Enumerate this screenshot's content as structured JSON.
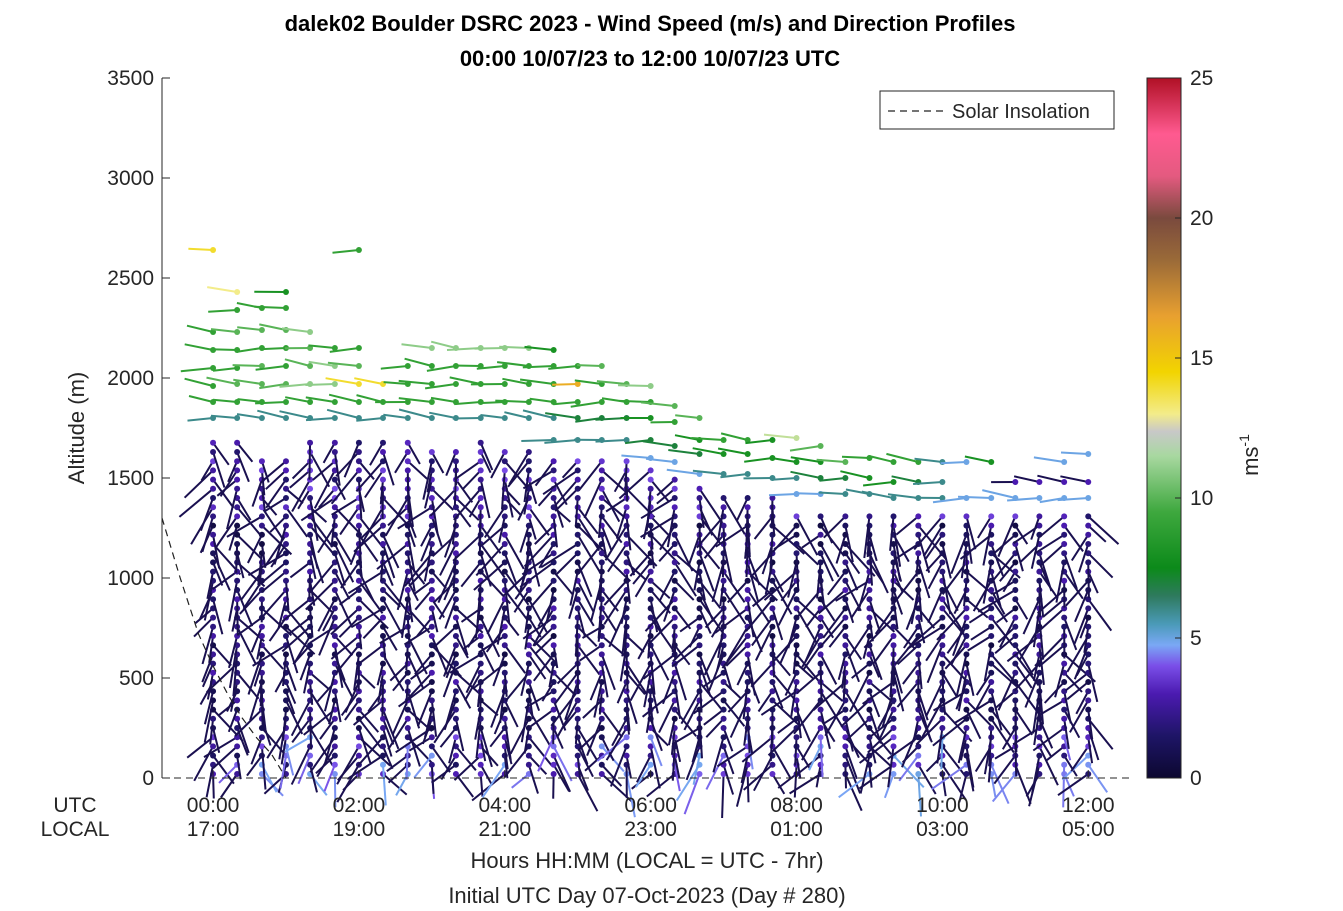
{
  "chart_data": {
    "type": "wind-barb-profile",
    "title_line1": "dalek02 Boulder DSRC 2023 - Wind Speed (m/s) and Direction Profiles",
    "title_line2": "00:00 10/07/23 to 12:00 10/07/23  UTC",
    "ylabel": "Altitude (m)",
    "ylim": [
      0,
      3500
    ],
    "yticks": [
      "0",
      "500",
      "1000",
      "1500",
      "2000",
      "2500",
      "3000",
      "3500"
    ],
    "xlim_hours": [
      -0.7,
      12.6
    ],
    "x_row_labels": [
      "UTC",
      "LOCAL"
    ],
    "x_ticks_utc": [
      "00:00",
      "02:00",
      "04:00",
      "06:00",
      "08:00",
      "10:00",
      "12:00"
    ],
    "x_ticks_local": [
      "17:00",
      "19:00",
      "21:00",
      "23:00",
      "01:00",
      "03:00",
      "05:00"
    ],
    "x_tick_hours": [
      0,
      2,
      4,
      6,
      8,
      10,
      12
    ],
    "xlabel": "Hours HH:MM  (LOCAL = UTC - 7hr)",
    "xlabel2": "Initial UTC Day 07-Oct-2023 (Day # 280)",
    "legend": {
      "entry": "Solar Insolation",
      "placement": "top-right"
    },
    "colorbar": {
      "label": "ms",
      "label_superscript": "-1",
      "range": [
        0,
        25
      ],
      "ticks": [
        "0",
        "5",
        "10",
        "15",
        "20",
        "25"
      ]
    },
    "solar_insolation": {
      "hours": [
        -0.7,
        -0.45,
        -0.2,
        0.0,
        0.2,
        0.4,
        0.6,
        0.8,
        1.0
      ],
      "altitude": [
        1300,
        1000,
        720,
        560,
        420,
        300,
        200,
        120,
        0
      ]
    },
    "profiles": [
      {
        "hour": 0.0,
        "top": 1700,
        "upper": [
          [
            1800,
            6
          ],
          [
            1880,
            9
          ],
          [
            1960,
            9
          ],
          [
            2050,
            9
          ],
          [
            2140,
            9
          ],
          [
            2230,
            9
          ],
          [
            2640,
            14
          ]
        ]
      },
      {
        "hour": 0.33,
        "top": 1700,
        "upper": [
          [
            1800,
            6
          ],
          [
            1880,
            9
          ],
          [
            1970,
            10
          ],
          [
            2050,
            9
          ],
          [
            2140,
            9
          ],
          [
            2230,
            10
          ],
          [
            2340,
            9
          ],
          [
            2430,
            13
          ]
        ]
      },
      {
        "hour": 0.67,
        "top": 1620,
        "upper": [
          [
            1800,
            6
          ],
          [
            1880,
            9
          ],
          [
            1970,
            10
          ],
          [
            2060,
            10
          ],
          [
            2150,
            9
          ],
          [
            2240,
            10
          ],
          [
            2350,
            9
          ]
        ]
      },
      {
        "hour": 1.0,
        "top": 1600,
        "upper": [
          [
            1800,
            6
          ],
          [
            1880,
            9
          ],
          [
            1970,
            10
          ],
          [
            2060,
            9
          ],
          [
            2150,
            9
          ],
          [
            2240,
            10
          ],
          [
            2350,
            9
          ],
          [
            2430,
            8
          ]
        ]
      },
      {
        "hour": 1.33,
        "top": 1680,
        "upper": [
          [
            1800,
            6
          ],
          [
            1880,
            9
          ],
          [
            1970,
            11
          ],
          [
            2060,
            10
          ],
          [
            2150,
            10
          ],
          [
            2230,
            11
          ]
        ]
      },
      {
        "hour": 1.67,
        "top": 1680,
        "upper": [
          [
            1800,
            6
          ],
          [
            1880,
            9
          ],
          [
            1970,
            11
          ],
          [
            2060,
            11
          ],
          [
            2150,
            9
          ]
        ]
      },
      {
        "hour": 2.0,
        "top": 1680,
        "upper": [
          [
            1800,
            6
          ],
          [
            1880,
            9
          ],
          [
            1970,
            14
          ],
          [
            2060,
            10
          ],
          [
            2150,
            9
          ],
          [
            2640,
            9
          ]
        ]
      },
      {
        "hour": 2.33,
        "top": 1680,
        "upper": [
          [
            1800,
            6
          ],
          [
            1880,
            9
          ],
          [
            1970,
            14
          ]
        ]
      },
      {
        "hour": 2.67,
        "top": 1700,
        "upper": [
          [
            1800,
            6
          ],
          [
            1880,
            9
          ],
          [
            1970,
            9
          ],
          [
            2060,
            9
          ]
        ]
      },
      {
        "hour": 3.0,
        "top": 1650,
        "upper": [
          [
            1800,
            6
          ],
          [
            1880,
            9
          ],
          [
            1970,
            9
          ],
          [
            2060,
            9
          ],
          [
            2150,
            11
          ]
        ]
      },
      {
        "hour": 3.33,
        "top": 1650,
        "upper": [
          [
            1800,
            6
          ],
          [
            1880,
            9
          ],
          [
            1970,
            9
          ],
          [
            2060,
            9
          ],
          [
            2150,
            11
          ]
        ]
      },
      {
        "hour": 3.67,
        "top": 1700,
        "upper": [
          [
            1800,
            6
          ],
          [
            1880,
            9
          ],
          [
            1970,
            9
          ],
          [
            2060,
            9
          ],
          [
            2150,
            11
          ]
        ]
      },
      {
        "hour": 4.0,
        "top": 1660,
        "upper": [
          [
            1800,
            6
          ],
          [
            1880,
            9
          ],
          [
            1970,
            9
          ],
          [
            2060,
            9
          ],
          [
            2150,
            11
          ]
        ]
      },
      {
        "hour": 4.33,
        "top": 1660,
        "upper": [
          [
            1800,
            6
          ],
          [
            1880,
            9
          ],
          [
            1970,
            9
          ],
          [
            2060,
            9
          ],
          [
            2150,
            11
          ]
        ]
      },
      {
        "hour": 4.67,
        "top": 1620,
        "upper": [
          [
            1690,
            6
          ],
          [
            1800,
            6
          ],
          [
            1880,
            9
          ],
          [
            1970,
            9
          ],
          [
            2060,
            9
          ],
          [
            2140,
            8
          ]
        ]
      },
      {
        "hour": 5.0,
        "top": 1620,
        "upper": [
          [
            1690,
            6
          ],
          [
            1800,
            7
          ],
          [
            1880,
            9
          ],
          [
            1970,
            16
          ],
          [
            2060,
            9
          ]
        ]
      },
      {
        "hour": 5.33,
        "top": 1620,
        "upper": [
          [
            1690,
            6
          ],
          [
            1800,
            7
          ],
          [
            1880,
            9
          ],
          [
            1970,
            9
          ],
          [
            2060,
            10
          ]
        ]
      },
      {
        "hour": 5.67,
        "top": 1600,
        "upper": [
          [
            1690,
            6
          ],
          [
            1800,
            7
          ],
          [
            1880,
            9
          ],
          [
            1970,
            10
          ]
        ]
      },
      {
        "hour": 6.0,
        "top": 1550,
        "upper": [
          [
            1600,
            5
          ],
          [
            1690,
            7
          ],
          [
            1800,
            8
          ],
          [
            1880,
            9
          ],
          [
            1960,
            11
          ]
        ]
      },
      {
        "hour": 6.33,
        "top": 1500,
        "upper": [
          [
            1580,
            5
          ],
          [
            1660,
            7
          ],
          [
            1780,
            9
          ],
          [
            1860,
            10
          ]
        ]
      },
      {
        "hour": 6.67,
        "top": 1450,
        "upper": [
          [
            1520,
            5
          ],
          [
            1620,
            7
          ],
          [
            1690,
            8
          ],
          [
            1800,
            10
          ]
        ]
      },
      {
        "hour": 7.0,
        "top": 1430,
        "upper": [
          [
            1520,
            6
          ],
          [
            1620,
            8
          ],
          [
            1690,
            9
          ]
        ]
      },
      {
        "hour": 7.33,
        "top": 1420,
        "upper": [
          [
            1520,
            6
          ],
          [
            1620,
            8
          ],
          [
            1690,
            9
          ]
        ]
      },
      {
        "hour": 7.67,
        "top": 1400,
        "upper": [
          [
            1500,
            6
          ],
          [
            1600,
            8
          ],
          [
            1690,
            8
          ]
        ]
      },
      {
        "hour": 8.0,
        "top": 1350,
        "upper": [
          [
            1420,
            5
          ],
          [
            1500,
            6
          ],
          [
            1580,
            8
          ],
          [
            1700,
            12
          ]
        ]
      },
      {
        "hour": 8.33,
        "top": 1330,
        "upper": [
          [
            1420,
            5
          ],
          [
            1500,
            7
          ],
          [
            1580,
            8
          ],
          [
            1660,
            10
          ]
        ]
      },
      {
        "hour": 8.67,
        "top": 1330,
        "upper": [
          [
            1420,
            6
          ],
          [
            1500,
            7
          ],
          [
            1580,
            10
          ]
        ]
      },
      {
        "hour": 9.0,
        "top": 1330,
        "upper": [
          [
            1420,
            6
          ],
          [
            1500,
            8
          ],
          [
            1600,
            9
          ]
        ]
      },
      {
        "hour": 9.33,
        "top": 1320,
        "upper": [
          [
            1400,
            6
          ],
          [
            1480,
            8
          ],
          [
            1580,
            9
          ]
        ]
      },
      {
        "hour": 9.67,
        "top": 1320,
        "upper": [
          [
            1400,
            6
          ],
          [
            1480,
            7
          ],
          [
            1580,
            9
          ]
        ]
      },
      {
        "hour": 10.0,
        "top": 1320,
        "upper": [
          [
            1400,
            6
          ],
          [
            1480,
            6
          ],
          [
            1580,
            6
          ]
        ]
      },
      {
        "hour": 10.33,
        "top": 1320,
        "upper": [
          [
            1400,
            5
          ],
          [
            1580,
            5
          ]
        ]
      },
      {
        "hour": 10.67,
        "top": 1320,
        "upper": [
          [
            1400,
            5
          ],
          [
            1580,
            8
          ]
        ]
      },
      {
        "hour": 11.0,
        "top": 1320,
        "upper": [
          [
            1400,
            5
          ],
          [
            1480,
            3
          ]
        ]
      },
      {
        "hour": 11.33,
        "top": 1320,
        "upper": [
          [
            1400,
            5
          ],
          [
            1480,
            3
          ]
        ]
      },
      {
        "hour": 11.67,
        "top": 1320,
        "upper": [
          [
            1400,
            5
          ],
          [
            1480,
            3
          ],
          [
            1580,
            5
          ]
        ]
      },
      {
        "hour": 12.0,
        "top": 1320,
        "upper": [
          [
            1400,
            5
          ],
          [
            1480,
            3
          ],
          [
            1620,
            5
          ]
        ]
      }
    ]
  }
}
